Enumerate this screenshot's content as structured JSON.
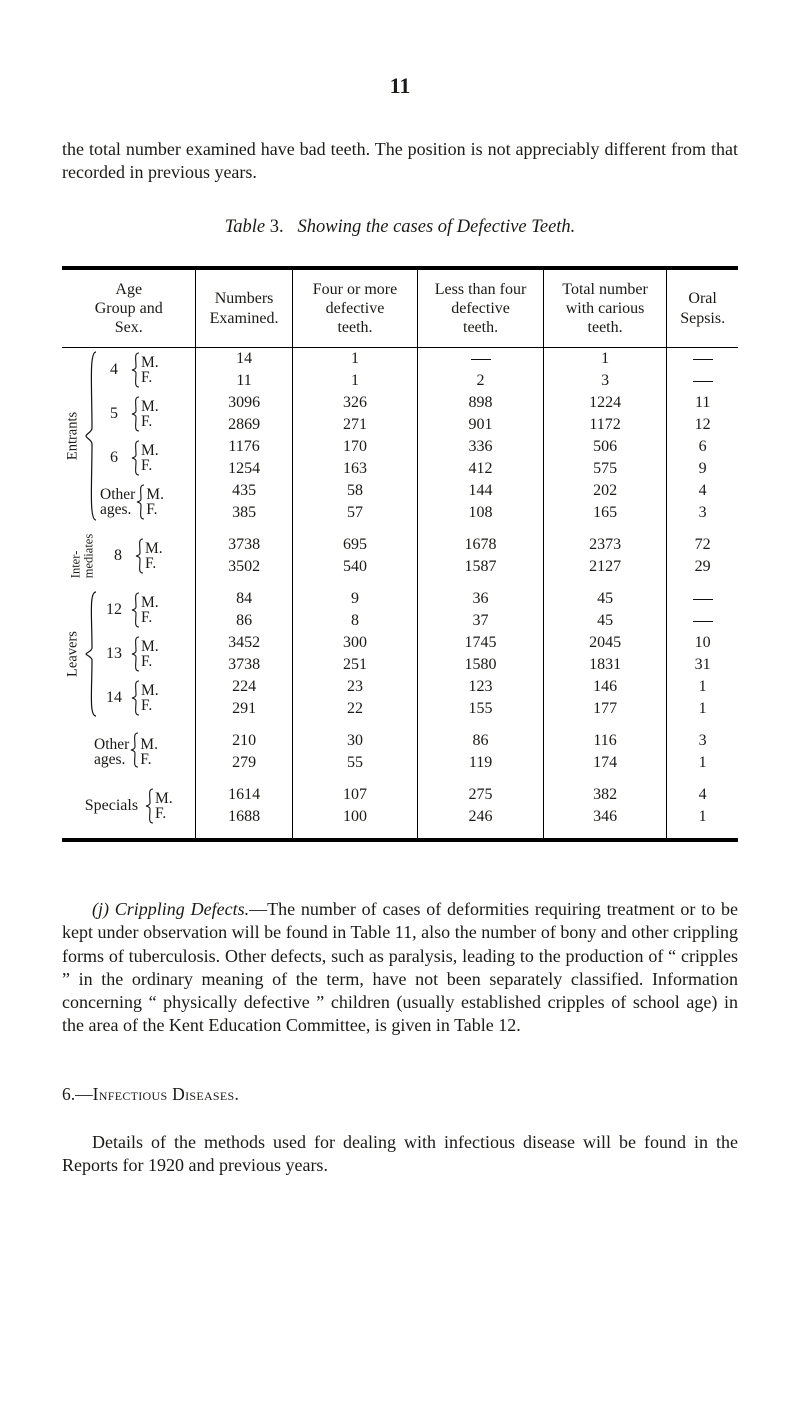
{
  "page_number": "11",
  "intro_para": "the total number examined have bad teeth. The position is not appre­ciably different from that recorded in previous years.",
  "table_title_prefix": "Table",
  "table_title_num": "3.",
  "table_title_rest": "Showing the cases of Defective Teeth.",
  "headers": {
    "age": "Age\nGroup and\nSex.",
    "num": "Numbers\nExamined.",
    "four": "Four or more\ndefective\nteeth.",
    "less": "Less than four\ndefective\nteeth.",
    "tot": "Total number\nwith carious\nteeth.",
    "oral": "Oral\nSepsis."
  },
  "group_labels": {
    "entrants": "Entrants",
    "inter": "Inter-\nmediates",
    "leavers": "Leavers"
  },
  "age_numbers": {
    "e": [
      "4",
      "5",
      "6"
    ],
    "i": [
      "8"
    ],
    "l": [
      "12",
      "13",
      "14"
    ]
  },
  "mf": {
    "m": "M.",
    "f": "F."
  },
  "other_label": "Other",
  "ages_label": "ages.",
  "specials_label": "Specials",
  "rows": {
    "e4m": {
      "num": "14",
      "four": "1",
      "less": "—",
      "tot": "1",
      "oral": "—"
    },
    "e4f": {
      "num": "11",
      "four": "1",
      "less": "2",
      "tot": "3",
      "oral": "—"
    },
    "e5m": {
      "num": "3096",
      "four": "326",
      "less": "898",
      "tot": "1224",
      "oral": "11"
    },
    "e5f": {
      "num": "2869",
      "four": "271",
      "less": "901",
      "tot": "1172",
      "oral": "12"
    },
    "e6m": {
      "num": "1176",
      "four": "170",
      "less": "336",
      "tot": "506",
      "oral": "6"
    },
    "e6f": {
      "num": "1254",
      "four": "163",
      "less": "412",
      "tot": "575",
      "oral": "9"
    },
    "eoM": {
      "num": "435",
      "four": "58",
      "less": "144",
      "tot": "202",
      "oral": "4"
    },
    "eoF": {
      "num": "385",
      "four": "57",
      "less": "108",
      "tot": "165",
      "oral": "3"
    },
    "i8m": {
      "num": "3738",
      "four": "695",
      "less": "1678",
      "tot": "2373",
      "oral": "72"
    },
    "i8f": {
      "num": "3502",
      "four": "540",
      "less": "1587",
      "tot": "2127",
      "oral": "29"
    },
    "l12m": {
      "num": "84",
      "four": "9",
      "less": "36",
      "tot": "45",
      "oral": "—"
    },
    "l12f": {
      "num": "86",
      "four": "8",
      "less": "37",
      "tot": "45",
      "oral": "—"
    },
    "l13m": {
      "num": "3452",
      "four": "300",
      "less": "1745",
      "tot": "2045",
      "oral": "10"
    },
    "l13f": {
      "num": "3738",
      "four": "251",
      "less": "1580",
      "tot": "1831",
      "oral": "31"
    },
    "l14m": {
      "num": "224",
      "four": "23",
      "less": "123",
      "tot": "146",
      "oral": "1"
    },
    "l14f": {
      "num": "291",
      "four": "22",
      "less": "155",
      "tot": "177",
      "oral": "1"
    },
    "loM": {
      "num": "210",
      "four": "30",
      "less": "86",
      "tot": "116",
      "oral": "3"
    },
    "loF": {
      "num": "279",
      "four": "55",
      "less": "119",
      "tot": "174",
      "oral": "1"
    },
    "spM": {
      "num": "1614",
      "four": "107",
      "less": "275",
      "tot": "382",
      "oral": "4"
    },
    "spF": {
      "num": "1688",
      "four": "100",
      "less": "246",
      "tot": "346",
      "oral": "1"
    }
  },
  "para_j_label": "(j) Crippling Defects.",
  "para_j": "—The number of cases of deformities requiring treatment or to be kept under observation will be found in Table 11, also the number of bony and other crippling forms of tuberculosis. Other defects, such as paralysis, leading to the production of “ cripples ” in the ordinary meaning of the term, have not been separately classified. In­formation concerning “ physically defective ” children (usually established cripples of school age) in the area of the Kent Education Committee, is given in Table 12.",
  "subhead_num": "6.—",
  "subhead_text": "Infectious Diseases.",
  "para_6": "Details of the methods used for dealing with infectious disease will be found in the Reports for 1920 and previous years."
}
